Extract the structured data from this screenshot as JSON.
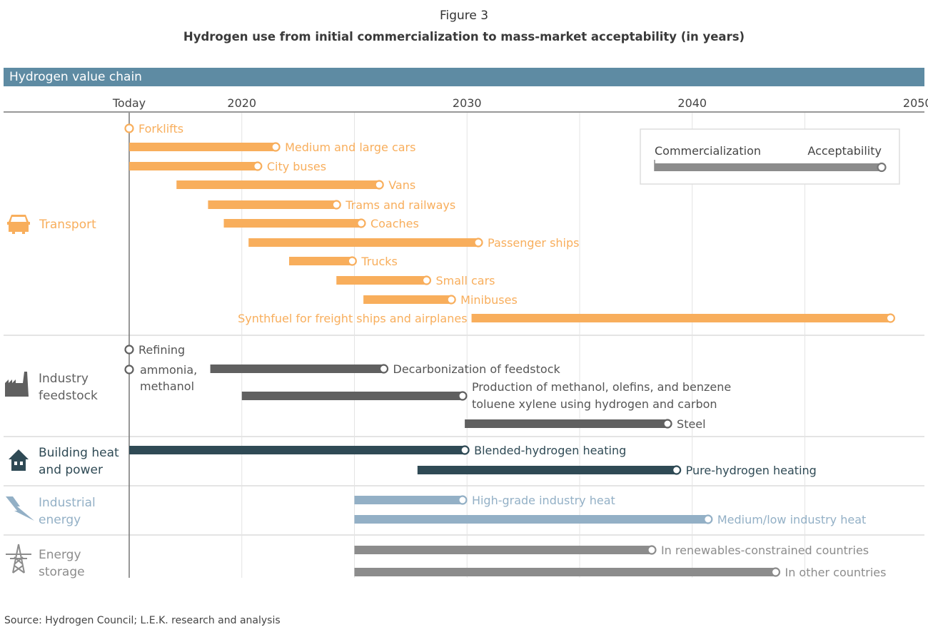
{
  "figure_number": "Figure 3",
  "title": "Hydrogen use from initial commercialization to mass-market acceptability (in years)",
  "header_bar": "Hydrogen value chain",
  "source": "Source: Hydrogen Council; L.E.K. research and analysis",
  "chart_data": {
    "type": "gantt",
    "title": "Hydrogen use from initial commercialization to mass-market acceptability (in years)",
    "x_axis": {
      "range": [
        2015,
        2050
      ],
      "ticks": [
        {
          "value": 2015,
          "label": "Today"
        },
        {
          "value": 2020,
          "label": "2020"
        },
        {
          "value": 2030,
          "label": "2030"
        },
        {
          "value": 2040,
          "label": "2040"
        },
        {
          "value": 2050,
          "label": "2050"
        }
      ],
      "gridlines_every": 5
    },
    "legend": {
      "start_label": "Commercialization",
      "end_label": "Acceptability",
      "placement": "top-right"
    },
    "categories": [
      {
        "name": "Transport",
        "icon": "car-icon",
        "color": "#f8ae5c",
        "rows": [
          {
            "label": "Forklifts",
            "start": 2015,
            "end": 2015
          },
          {
            "label": "Medium and large cars",
            "start": 2015,
            "end": 2021.5
          },
          {
            "label": "City buses",
            "start": 2015,
            "end": 2020.7
          },
          {
            "label": "Vans",
            "start": 2017.1,
            "end": 2026.1
          },
          {
            "label": "Trams and railways",
            "start": 2018.5,
            "end": 2024.2
          },
          {
            "label": "Coaches",
            "start": 2019.2,
            "end": 2025.3
          },
          {
            "label": "Passenger ships",
            "start": 2020.3,
            "end": 2030.5
          },
          {
            "label": "Trucks",
            "start": 2022.1,
            "end": 2024.9
          },
          {
            "label": "Small cars",
            "start": 2024.2,
            "end": 2028.2
          },
          {
            "label": "Minibuses",
            "start": 2025.4,
            "end": 2029.3
          },
          {
            "label": "Synthfuel for freight ships and airplanes",
            "start": 2030.2,
            "end": 2048.8,
            "label_side": "left"
          }
        ]
      },
      {
        "name": "Industry feedstock",
        "icon": "factory-icon",
        "color": "#606060",
        "rows": [
          {
            "label": "Refining",
            "start": 2015,
            "end": 2015
          },
          {
            "label": "ammonia, methanol",
            "start": 2015,
            "end": 2015
          },
          {
            "label": "Decarbonization of feedstock",
            "start": 2018.6,
            "end": 2026.3
          },
          {
            "label": "Production of methanol, olefins, and benzene toluene xylene using hydrogen and carbon",
            "start": 2020,
            "end": 2029.8
          },
          {
            "label": "Steel",
            "start": 2029.9,
            "end": 2038.9
          }
        ]
      },
      {
        "name": "Building heat and power",
        "icon": "house-icon",
        "color": "#2f4a55",
        "rows": [
          {
            "label": "Blended-hydrogen heating",
            "start": 2015,
            "end": 2029.9
          },
          {
            "label": "Pure-hydrogen heating",
            "start": 2027.8,
            "end": 2039.3
          }
        ]
      },
      {
        "name": "Industrial energy",
        "icon": "lightning-icon",
        "color": "#93b0c6",
        "rows": [
          {
            "label": "High-grade industry heat",
            "start": 2025,
            "end": 2029.8
          },
          {
            "label": "Medium/low industry heat",
            "start": 2025,
            "end": 2040.7
          }
        ]
      },
      {
        "name": "Energy storage",
        "icon": "power-tower-icon",
        "color": "#8c8c8c",
        "rows": [
          {
            "label": "In renewables-constrained countries",
            "start": 2025,
            "end": 2038.2
          },
          {
            "label": "In other countries",
            "start": 2025,
            "end": 2043.7
          }
        ]
      }
    ]
  }
}
